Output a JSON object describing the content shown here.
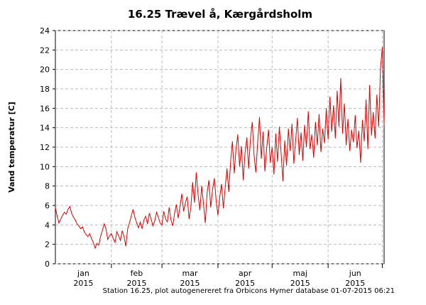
{
  "chart_data": {
    "type": "line",
    "title": "16.25 Trævel å, Kærgårdsholm",
    "y_label": "Vand temperatur [C]",
    "footer": "Station 16.25, plot autogenereret fra Orbicons Hymer database 01-07-2015 06:21",
    "ylim": [
      0,
      24
    ],
    "yticks": [
      0,
      2,
      4,
      6,
      8,
      10,
      12,
      14,
      16,
      18,
      20,
      22,
      24
    ],
    "grid": true,
    "xticks": [
      {
        "label": "jan",
        "year": "2015"
      },
      {
        "label": "feb",
        "year": "2015"
      },
      {
        "label": "mar",
        "year": "2015"
      },
      {
        "label": "apr",
        "year": "2015"
      },
      {
        "label": "maj",
        "year": "2015"
      },
      {
        "label": "jun",
        "year": "2015"
      }
    ],
    "series": [
      {
        "color": "#dd0000",
        "values": [
          5.8,
          4.9,
          4.2,
          4.6,
          5.0,
          5.3,
          5.1,
          5.6,
          5.9,
          5.2,
          4.8,
          4.5,
          4.1,
          3.9,
          3.6,
          3.8,
          3.3,
          3.0,
          2.8,
          3.1,
          2.6,
          2.2,
          1.6,
          2.1,
          1.9,
          2.8,
          3.4,
          4.1,
          3.6,
          2.5,
          2.9,
          3.1,
          2.6,
          2.2,
          3.3,
          2.9,
          2.4,
          3.4,
          2.8,
          1.8,
          3.6,
          4.2,
          4.9,
          5.6,
          4.8,
          4.2,
          3.7,
          4.3,
          3.6,
          4.5,
          4.9,
          4.1,
          5.2,
          4.6,
          3.9,
          4.4,
          5.3,
          4.8,
          4.2,
          4.0,
          5.4,
          4.6,
          4.3,
          5.8,
          4.5,
          3.9,
          5.2,
          6.1,
          4.7,
          5.9,
          7.2,
          5.4,
          6.3,
          6.9,
          4.6,
          5.8,
          8.4,
          6.3,
          9.4,
          7.1,
          5.5,
          8.0,
          6.2,
          4.2,
          7.3,
          8.6,
          5.8,
          7.6,
          8.8,
          6.5,
          5.0,
          6.9,
          8.2,
          5.7,
          7.8,
          9.8,
          7.4,
          10.5,
          12.6,
          9.3,
          11.8,
          13.3,
          10.0,
          12.1,
          8.6,
          11.4,
          13.0,
          9.8,
          12.8,
          14.6,
          11.2,
          9.4,
          12.5,
          15.1,
          10.8,
          13.6,
          9.5,
          11.9,
          13.8,
          10.4,
          12.0,
          9.2,
          13.4,
          10.5,
          14.1,
          11.3,
          8.5,
          12.7,
          10.1,
          13.9,
          11.6,
          14.4,
          10.3,
          12.6,
          15.0,
          11.2,
          13.5,
          10.6,
          14.3,
          12.0,
          15.7,
          11.8,
          13.3,
          10.9,
          14.6,
          12.2,
          15.4,
          11.5,
          13.9,
          12.4,
          16.0,
          12.8,
          17.2,
          13.6,
          16.3,
          12.9,
          17.8,
          14.1,
          19.1,
          13.4,
          16.5,
          12.2,
          14.9,
          11.6,
          13.8,
          12.5,
          15.3,
          11.9,
          13.7,
          10.4,
          14.8,
          12.6,
          16.9,
          11.8,
          18.4,
          13.2,
          15.6,
          12.9,
          17.4,
          14.1,
          20.1,
          22.3,
          14.2
        ]
      }
    ]
  }
}
